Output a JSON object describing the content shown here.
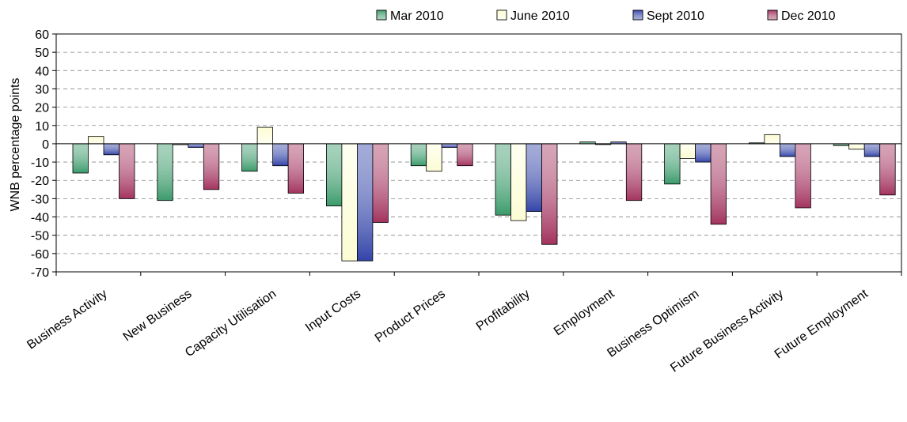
{
  "chart_data": {
    "type": "bar",
    "title": "",
    "xlabel": "",
    "ylabel": "WNB percentage points",
    "ylim": [
      -70,
      60
    ],
    "yticks": [
      60,
      50,
      40,
      30,
      20,
      10,
      0,
      -10,
      -20,
      -30,
      -40,
      -50,
      -60,
      -70
    ],
    "grid": true,
    "legend_position": "top",
    "categories": [
      "Business Activity",
      "New Business",
      "Capacity Utilisation",
      "Input Costs",
      "Product Prices",
      "Profitability",
      "Employment",
      "Business Optimism",
      "Future Business Activity",
      "Future Employment"
    ],
    "series": [
      {
        "name": "Mar 2010",
        "color": "#3a9a6a",
        "values": [
          -16,
          -31,
          -15,
          -34,
          -12,
          -39,
          1,
          -22,
          0.5,
          -1
        ]
      },
      {
        "name": "June 2010",
        "color": "#fcfcd4",
        "values": [
          4,
          -0.5,
          9,
          -64,
          -15,
          -42,
          0,
          -8,
          5,
          -3
        ]
      },
      {
        "name": "Sept 2010",
        "color": "#3344a8",
        "values": [
          -6,
          -2,
          -12,
          -64,
          -2,
          -37,
          1,
          -10,
          -7,
          -7
        ]
      },
      {
        "name": "Dec 2010",
        "color": "#a3335e",
        "values": [
          -30,
          -25,
          -27,
          -43,
          -12,
          -55,
          -31,
          -44,
          -35,
          -28
        ]
      }
    ]
  }
}
